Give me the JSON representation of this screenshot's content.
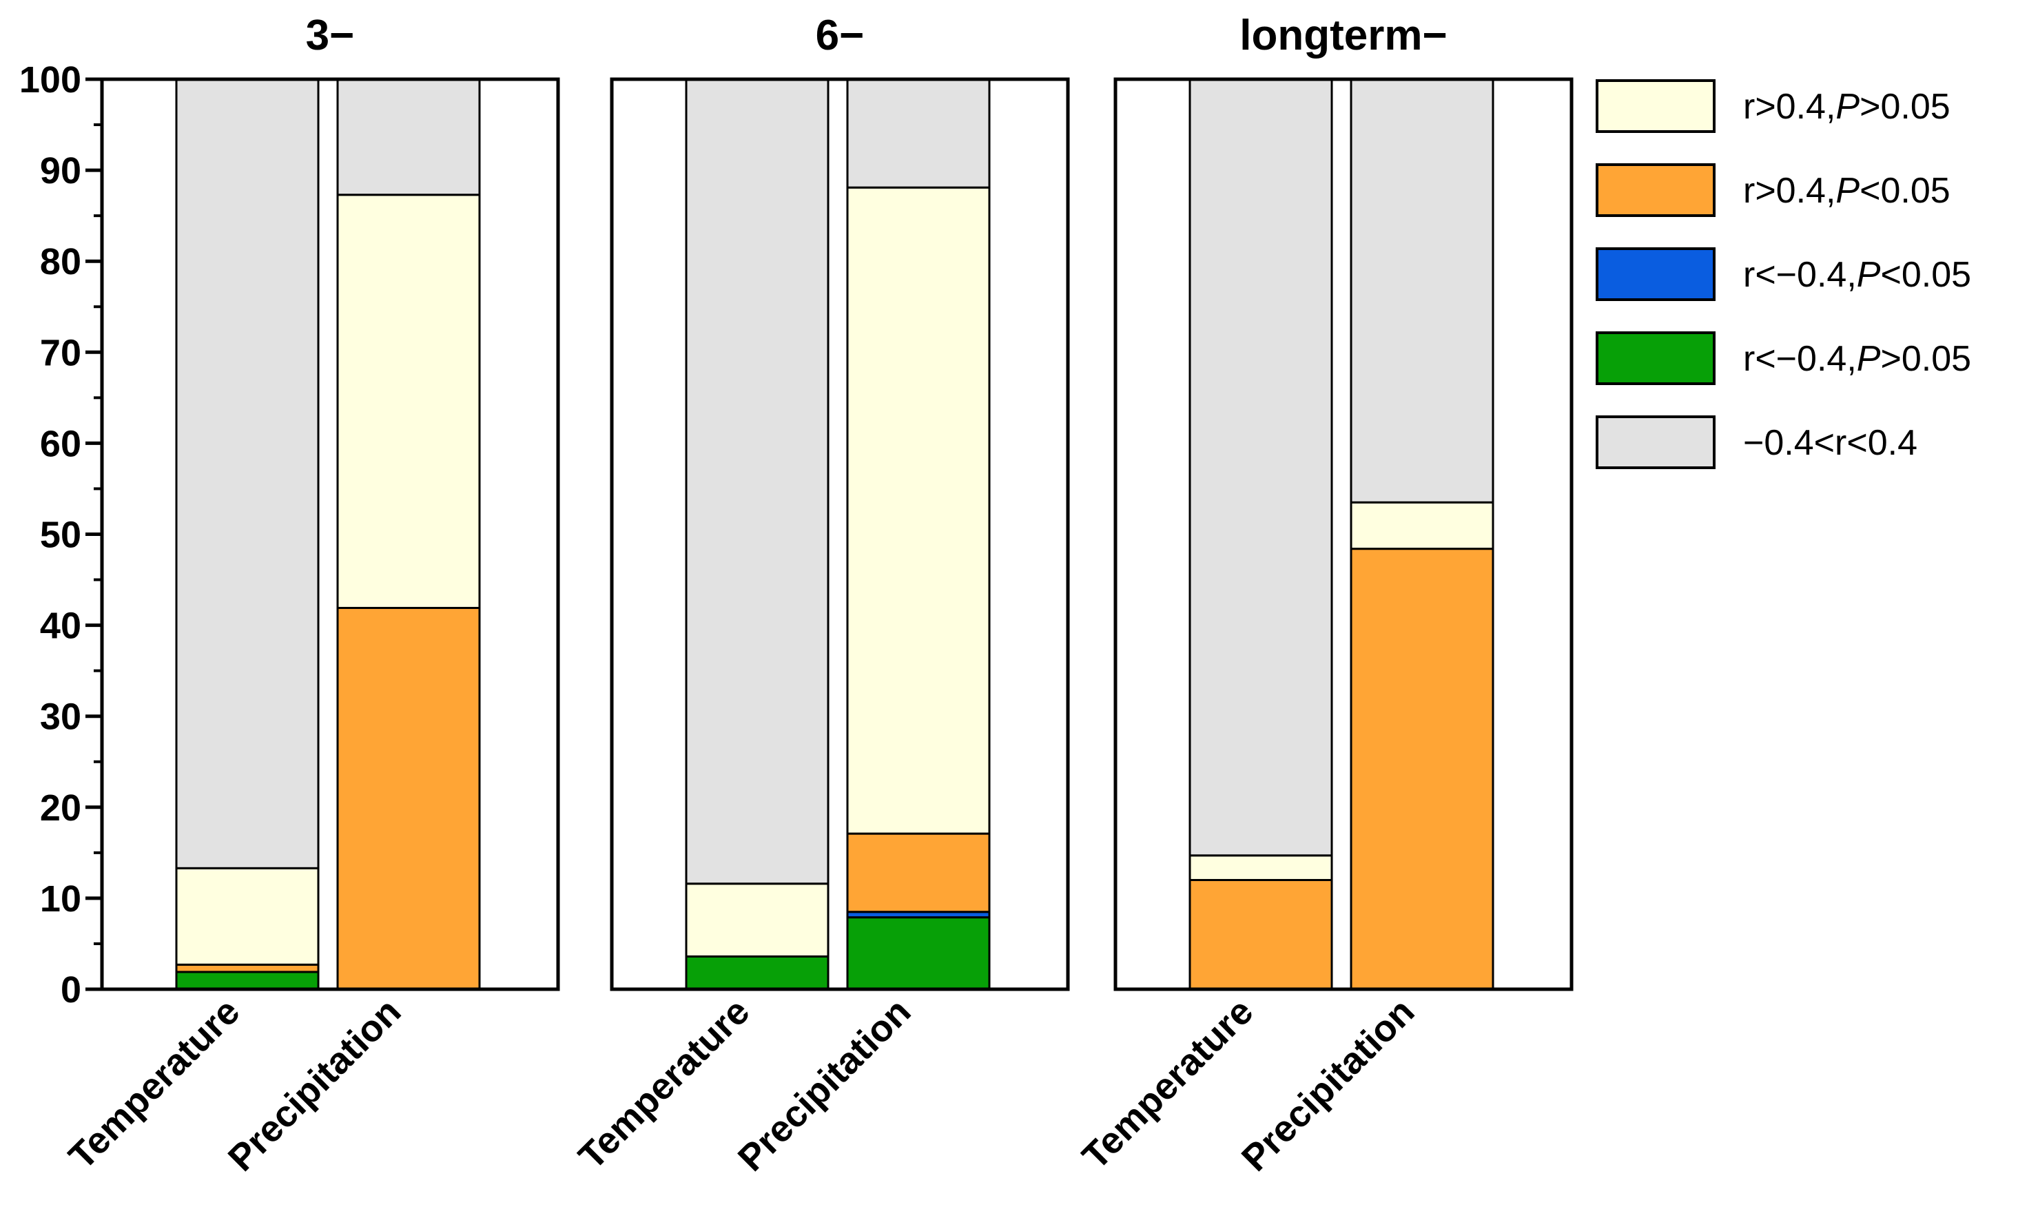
{
  "chart_data": {
    "type": "bar",
    "stacked": true,
    "ylim": [
      0,
      100
    ],
    "yticks": [
      "0",
      "10",
      "20",
      "30",
      "40",
      "50",
      "60",
      "70",
      "80",
      "90",
      "100"
    ],
    "categories": [
      "Temperature",
      "Precipitation"
    ],
    "legend_position": "right",
    "legend": [
      {
        "key": "pos_ns",
        "label": "r>0.4,",
        "label_italic": "P",
        "label_tail": ">0.05"
      },
      {
        "key": "pos_sig",
        "label": "r>0.4,",
        "label_italic": "P",
        "label_tail": "<0.05"
      },
      {
        "key": "neg_sig",
        "label": "r<−0.4,",
        "label_italic": "P",
        "label_tail": "<0.05"
      },
      {
        "key": "neg_ns",
        "label": "r<−0.4,",
        "label_italic": "P",
        "label_tail": ">0.05"
      },
      {
        "key": "weak",
        "label": "−0.4<r<0.4",
        "label_italic": "",
        "label_tail": ""
      }
    ],
    "colors": {
      "pos_ns": "#FFFFE0",
      "pos_sig": "#FFA535",
      "neg_sig": "#0A5DE0",
      "neg_ns": "#07A007",
      "weak": "#E2E2E2"
    },
    "stack_order": [
      "neg_ns",
      "neg_sig",
      "pos_sig",
      "pos_ns",
      "weak"
    ],
    "panels": [
      {
        "title": "3−",
        "bars": [
          {
            "category": "Temperature",
            "neg_ns": 1.9,
            "neg_sig": 0.0,
            "pos_sig": 0.8,
            "pos_ns": 10.6,
            "weak": 86.7
          },
          {
            "category": "Precipitation",
            "neg_ns": 0.0,
            "neg_sig": 0.0,
            "pos_sig": 41.9,
            "pos_ns": 45.4,
            "weak": 12.7
          }
        ]
      },
      {
        "title": "6−",
        "bars": [
          {
            "category": "Temperature",
            "neg_ns": 3.6,
            "neg_sig": 0.0,
            "pos_sig": 0.0,
            "pos_ns": 8.0,
            "weak": 88.4
          },
          {
            "category": "Precipitation",
            "neg_ns": 7.9,
            "neg_sig": 0.6,
            "pos_sig": 8.6,
            "pos_ns": 71.0,
            "weak": 11.9
          }
        ]
      },
      {
        "title": "longterm−",
        "bars": [
          {
            "category": "Temperature",
            "neg_ns": 0.0,
            "neg_sig": 0.0,
            "pos_sig": 12.0,
            "pos_ns": 2.7,
            "weak": 85.3
          },
          {
            "category": "Precipitation",
            "neg_ns": 0.0,
            "neg_sig": 0.0,
            "pos_sig": 48.4,
            "pos_ns": 5.1,
            "weak": 46.5
          }
        ]
      }
    ]
  }
}
